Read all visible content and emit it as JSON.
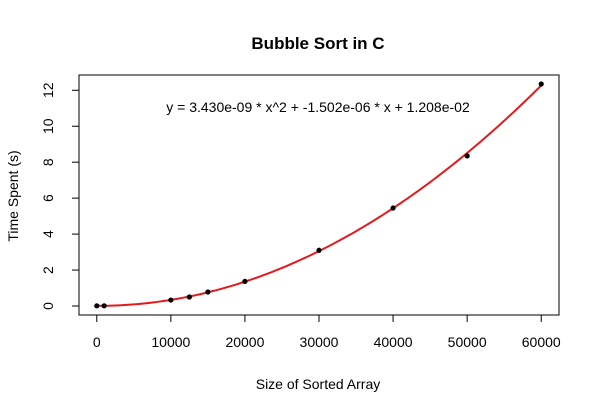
{
  "chart_data": {
    "type": "scatter",
    "title": "Bubble Sort in  C",
    "xlabel": "Size of Sorted Array",
    "ylabel": "Time Spent (s)",
    "xlim": [
      -2400,
      62400
    ],
    "ylim": [
      -0.5,
      12.85
    ],
    "x_ticks": [
      0,
      10000,
      20000,
      30000,
      40000,
      50000,
      60000
    ],
    "y_ticks": [
      0,
      2,
      4,
      6,
      8,
      10,
      12
    ],
    "annotation": "y = 3.430e-09 * x^2 + -1.502e-06 * x + 1.208e-02",
    "fit": {
      "a": 3.43e-09,
      "b": -1.502e-06,
      "c": 0.01208,
      "color": "#e41a1c"
    },
    "points_color": "#000000",
    "series": [
      {
        "x": [
          0,
          1000,
          10000,
          12500,
          15000,
          20000,
          30000,
          40000,
          50000,
          60000
        ],
        "y": [
          0.01,
          0.01,
          0.33,
          0.5,
          0.78,
          1.37,
          3.1,
          5.45,
          8.35,
          12.35
        ]
      }
    ],
    "grid": false,
    "legend": "none"
  }
}
